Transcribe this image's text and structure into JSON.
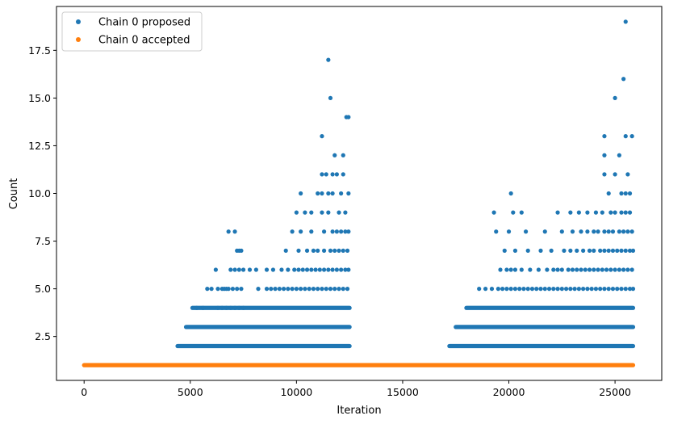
{
  "chart_data": {
    "type": "scatter",
    "title": "",
    "xlabel": "Iteration",
    "ylabel": "Count",
    "xlim": [
      -1300,
      27200
    ],
    "ylim": [
      0.2,
      19.8
    ],
    "xticks": [
      0,
      5000,
      10000,
      15000,
      20000,
      25000
    ],
    "xtick_labels": [
      "0",
      "5000",
      "10000",
      "15000",
      "20000",
      "25000"
    ],
    "yticks": [
      2.5,
      5.0,
      7.5,
      10.0,
      12.5,
      15.0,
      17.5
    ],
    "ytick_labels": [
      "2.5",
      "5.0",
      "7.5",
      "10.0",
      "12.5",
      "15.0",
      "17.5"
    ],
    "grid": false,
    "legend_position": "top-left",
    "series": [
      {
        "name": "Chain 0 proposed",
        "color": "#1f77b4",
        "bands": [
          {
            "y": 2,
            "x_start": 4400,
            "x_end": 12500,
            "x_start2": 17200,
            "x_end2": 25850
          },
          {
            "y": 3,
            "x_start": 4800,
            "x_end": 12500,
            "x_start2": 17500,
            "x_end2": 25850
          },
          {
            "y": 4,
            "x_start": 5100,
            "x_end": 12500,
            "x_start2": 18000,
            "x_end2": 25850
          }
        ],
        "points": [
          {
            "x": 5300,
            "y": 4
          },
          {
            "x": 5600,
            "y": 4
          },
          {
            "x": 5800,
            "y": 5
          },
          {
            "x": 6000,
            "y": 5
          },
          {
            "x": 6300,
            "y": 5
          },
          {
            "x": 6500,
            "y": 5
          },
          {
            "x": 6600,
            "y": 5
          },
          {
            "x": 6700,
            "y": 5
          },
          {
            "x": 6800,
            "y": 5
          },
          {
            "x": 7000,
            "y": 5
          },
          {
            "x": 7200,
            "y": 5
          },
          {
            "x": 7400,
            "y": 5
          },
          {
            "x": 6300,
            "y": 4
          },
          {
            "x": 6500,
            "y": 4
          },
          {
            "x": 6700,
            "y": 4
          },
          {
            "x": 6900,
            "y": 4
          },
          {
            "x": 7100,
            "y": 4
          },
          {
            "x": 7300,
            "y": 4
          },
          {
            "x": 7500,
            "y": 4
          },
          {
            "x": 6200,
            "y": 6
          },
          {
            "x": 6900,
            "y": 6
          },
          {
            "x": 7100,
            "y": 6
          },
          {
            "x": 7300,
            "y": 6
          },
          {
            "x": 7500,
            "y": 6
          },
          {
            "x": 7800,
            "y": 6
          },
          {
            "x": 8100,
            "y": 6
          },
          {
            "x": 8600,
            "y": 6
          },
          {
            "x": 7200,
            "y": 7
          },
          {
            "x": 7300,
            "y": 7
          },
          {
            "x": 7400,
            "y": 7
          },
          {
            "x": 6800,
            "y": 8
          },
          {
            "x": 7100,
            "y": 8
          },
          {
            "x": 8200,
            "y": 5
          },
          {
            "x": 8600,
            "y": 5
          },
          {
            "x": 8800,
            "y": 5
          },
          {
            "x": 9000,
            "y": 5
          },
          {
            "x": 9200,
            "y": 5
          },
          {
            "x": 9400,
            "y": 5
          },
          {
            "x": 9600,
            "y": 5
          },
          {
            "x": 9800,
            "y": 5
          },
          {
            "x": 10000,
            "y": 5
          },
          {
            "x": 10200,
            "y": 5
          },
          {
            "x": 10400,
            "y": 5
          },
          {
            "x": 10600,
            "y": 5
          },
          {
            "x": 10800,
            "y": 5
          },
          {
            "x": 11000,
            "y": 5
          },
          {
            "x": 11200,
            "y": 5
          },
          {
            "x": 11400,
            "y": 5
          },
          {
            "x": 11600,
            "y": 5
          },
          {
            "x": 11800,
            "y": 5
          },
          {
            "x": 12000,
            "y": 5
          },
          {
            "x": 12200,
            "y": 5
          },
          {
            "x": 12400,
            "y": 5
          },
          {
            "x": 8900,
            "y": 6
          },
          {
            "x": 9300,
            "y": 6
          },
          {
            "x": 9600,
            "y": 6
          },
          {
            "x": 9900,
            "y": 6
          },
          {
            "x": 10100,
            "y": 6
          },
          {
            "x": 10300,
            "y": 6
          },
          {
            "x": 10500,
            "y": 6
          },
          {
            "x": 10700,
            "y": 6
          },
          {
            "x": 10900,
            "y": 6
          },
          {
            "x": 11100,
            "y": 6
          },
          {
            "x": 11300,
            "y": 6
          },
          {
            "x": 11500,
            "y": 6
          },
          {
            "x": 11700,
            "y": 6
          },
          {
            "x": 11900,
            "y": 6
          },
          {
            "x": 12100,
            "y": 6
          },
          {
            "x": 12300,
            "y": 6
          },
          {
            "x": 12450,
            "y": 6
          },
          {
            "x": 9500,
            "y": 7
          },
          {
            "x": 10100,
            "y": 7
          },
          {
            "x": 10500,
            "y": 7
          },
          {
            "x": 10800,
            "y": 7
          },
          {
            "x": 11000,
            "y": 7
          },
          {
            "x": 11300,
            "y": 7
          },
          {
            "x": 11600,
            "y": 7
          },
          {
            "x": 11800,
            "y": 7
          },
          {
            "x": 12000,
            "y": 7
          },
          {
            "x": 12200,
            "y": 7
          },
          {
            "x": 12400,
            "y": 7
          },
          {
            "x": 9800,
            "y": 8
          },
          {
            "x": 10200,
            "y": 8
          },
          {
            "x": 10700,
            "y": 8
          },
          {
            "x": 11300,
            "y": 8
          },
          {
            "x": 11700,
            "y": 8
          },
          {
            "x": 11900,
            "y": 8
          },
          {
            "x": 12100,
            "y": 8
          },
          {
            "x": 12300,
            "y": 8
          },
          {
            "x": 12450,
            "y": 8
          },
          {
            "x": 10000,
            "y": 9
          },
          {
            "x": 10400,
            "y": 9
          },
          {
            "x": 10700,
            "y": 9
          },
          {
            "x": 11200,
            "y": 9
          },
          {
            "x": 11500,
            "y": 9
          },
          {
            "x": 12000,
            "y": 9
          },
          {
            "x": 12300,
            "y": 9
          },
          {
            "x": 10200,
            "y": 10
          },
          {
            "x": 11000,
            "y": 10
          },
          {
            "x": 11200,
            "y": 10
          },
          {
            "x": 11500,
            "y": 10
          },
          {
            "x": 11700,
            "y": 10
          },
          {
            "x": 12100,
            "y": 10
          },
          {
            "x": 12450,
            "y": 10
          },
          {
            "x": 11200,
            "y": 11
          },
          {
            "x": 11400,
            "y": 11
          },
          {
            "x": 11700,
            "y": 11
          },
          {
            "x": 11900,
            "y": 11
          },
          {
            "x": 12200,
            "y": 11
          },
          {
            "x": 11800,
            "y": 12
          },
          {
            "x": 12200,
            "y": 12
          },
          {
            "x": 11200,
            "y": 13
          },
          {
            "x": 12350,
            "y": 14
          },
          {
            "x": 12450,
            "y": 14
          },
          {
            "x": 11600,
            "y": 15
          },
          {
            "x": 11500,
            "y": 17
          },
          {
            "x": 18600,
            "y": 5
          },
          {
            "x": 18900,
            "y": 5
          },
          {
            "x": 19200,
            "y": 5
          },
          {
            "x": 19500,
            "y": 5
          },
          {
            "x": 19700,
            "y": 5
          },
          {
            "x": 19900,
            "y": 5
          },
          {
            "x": 20100,
            "y": 5
          },
          {
            "x": 20300,
            "y": 5
          },
          {
            "x": 20500,
            "y": 5
          },
          {
            "x": 20700,
            "y": 5
          },
          {
            "x": 20900,
            "y": 5
          },
          {
            "x": 21100,
            "y": 5
          },
          {
            "x": 21300,
            "y": 5
          },
          {
            "x": 21500,
            "y": 5
          },
          {
            "x": 21700,
            "y": 5
          },
          {
            "x": 21900,
            "y": 5
          },
          {
            "x": 22100,
            "y": 5
          },
          {
            "x": 22300,
            "y": 5
          },
          {
            "x": 22500,
            "y": 5
          },
          {
            "x": 22700,
            "y": 5
          },
          {
            "x": 22900,
            "y": 5
          },
          {
            "x": 23100,
            "y": 5
          },
          {
            "x": 23300,
            "y": 5
          },
          {
            "x": 23500,
            "y": 5
          },
          {
            "x": 23700,
            "y": 5
          },
          {
            "x": 23900,
            "y": 5
          },
          {
            "x": 24100,
            "y": 5
          },
          {
            "x": 24300,
            "y": 5
          },
          {
            "x": 24500,
            "y": 5
          },
          {
            "x": 24700,
            "y": 5
          },
          {
            "x": 24900,
            "y": 5
          },
          {
            "x": 25100,
            "y": 5
          },
          {
            "x": 25300,
            "y": 5
          },
          {
            "x": 25500,
            "y": 5
          },
          {
            "x": 25700,
            "y": 5
          },
          {
            "x": 25850,
            "y": 5
          },
          {
            "x": 19600,
            "y": 6
          },
          {
            "x": 19900,
            "y": 6
          },
          {
            "x": 20100,
            "y": 6
          },
          {
            "x": 20300,
            "y": 6
          },
          {
            "x": 20600,
            "y": 6
          },
          {
            "x": 21000,
            "y": 6
          },
          {
            "x": 21400,
            "y": 6
          },
          {
            "x": 21800,
            "y": 6
          },
          {
            "x": 22100,
            "y": 6
          },
          {
            "x": 22300,
            "y": 6
          },
          {
            "x": 22500,
            "y": 6
          },
          {
            "x": 22800,
            "y": 6
          },
          {
            "x": 23000,
            "y": 6
          },
          {
            "x": 23200,
            "y": 6
          },
          {
            "x": 23400,
            "y": 6
          },
          {
            "x": 23600,
            "y": 6
          },
          {
            "x": 23800,
            "y": 6
          },
          {
            "x": 24000,
            "y": 6
          },
          {
            "x": 24200,
            "y": 6
          },
          {
            "x": 24400,
            "y": 6
          },
          {
            "x": 24600,
            "y": 6
          },
          {
            "x": 24800,
            "y": 6
          },
          {
            "x": 25000,
            "y": 6
          },
          {
            "x": 25200,
            "y": 6
          },
          {
            "x": 25400,
            "y": 6
          },
          {
            "x": 25600,
            "y": 6
          },
          {
            "x": 25800,
            "y": 6
          },
          {
            "x": 19800,
            "y": 7
          },
          {
            "x": 20300,
            "y": 7
          },
          {
            "x": 20900,
            "y": 7
          },
          {
            "x": 21500,
            "y": 7
          },
          {
            "x": 22000,
            "y": 7
          },
          {
            "x": 22600,
            "y": 7
          },
          {
            "x": 22900,
            "y": 7
          },
          {
            "x": 23200,
            "y": 7
          },
          {
            "x": 23500,
            "y": 7
          },
          {
            "x": 23800,
            "y": 7
          },
          {
            "x": 24000,
            "y": 7
          },
          {
            "x": 24300,
            "y": 7
          },
          {
            "x": 24500,
            "y": 7
          },
          {
            "x": 24700,
            "y": 7
          },
          {
            "x": 24900,
            "y": 7
          },
          {
            "x": 25100,
            "y": 7
          },
          {
            "x": 25300,
            "y": 7
          },
          {
            "x": 25500,
            "y": 7
          },
          {
            "x": 25700,
            "y": 7
          },
          {
            "x": 25850,
            "y": 7
          },
          {
            "x": 19400,
            "y": 8
          },
          {
            "x": 20000,
            "y": 8
          },
          {
            "x": 20800,
            "y": 8
          },
          {
            "x": 21700,
            "y": 8
          },
          {
            "x": 22500,
            "y": 8
          },
          {
            "x": 23000,
            "y": 8
          },
          {
            "x": 23400,
            "y": 8
          },
          {
            "x": 23700,
            "y": 8
          },
          {
            "x": 24000,
            "y": 8
          },
          {
            "x": 24200,
            "y": 8
          },
          {
            "x": 24500,
            "y": 8
          },
          {
            "x": 24700,
            "y": 8
          },
          {
            "x": 24900,
            "y": 8
          },
          {
            "x": 25200,
            "y": 8
          },
          {
            "x": 25400,
            "y": 8
          },
          {
            "x": 25600,
            "y": 8
          },
          {
            "x": 25800,
            "y": 8
          },
          {
            "x": 19300,
            "y": 9
          },
          {
            "x": 20200,
            "y": 9
          },
          {
            "x": 20600,
            "y": 9
          },
          {
            "x": 22300,
            "y": 9
          },
          {
            "x": 22900,
            "y": 9
          },
          {
            "x": 23300,
            "y": 9
          },
          {
            "x": 23700,
            "y": 9
          },
          {
            "x": 24100,
            "y": 9
          },
          {
            "x": 24400,
            "y": 9
          },
          {
            "x": 24800,
            "y": 9
          },
          {
            "x": 25000,
            "y": 9
          },
          {
            "x": 25300,
            "y": 9
          },
          {
            "x": 25500,
            "y": 9
          },
          {
            "x": 25700,
            "y": 9
          },
          {
            "x": 20100,
            "y": 10
          },
          {
            "x": 24700,
            "y": 10
          },
          {
            "x": 25300,
            "y": 10
          },
          {
            "x": 25500,
            "y": 10
          },
          {
            "x": 25700,
            "y": 10
          },
          {
            "x": 24500,
            "y": 11
          },
          {
            "x": 25000,
            "y": 11
          },
          {
            "x": 25600,
            "y": 11
          },
          {
            "x": 24500,
            "y": 12
          },
          {
            "x": 25200,
            "y": 12
          },
          {
            "x": 24500,
            "y": 13
          },
          {
            "x": 25500,
            "y": 13
          },
          {
            "x": 25800,
            "y": 13
          },
          {
            "x": 25000,
            "y": 15
          },
          {
            "x": 25400,
            "y": 16
          },
          {
            "x": 25500,
            "y": 19
          }
        ]
      },
      {
        "name": "Chain 0 accepted",
        "color": "#ff7f0e",
        "bands": [
          {
            "y": 1,
            "x_start": 0,
            "x_end": 25850
          }
        ],
        "points": []
      }
    ]
  }
}
